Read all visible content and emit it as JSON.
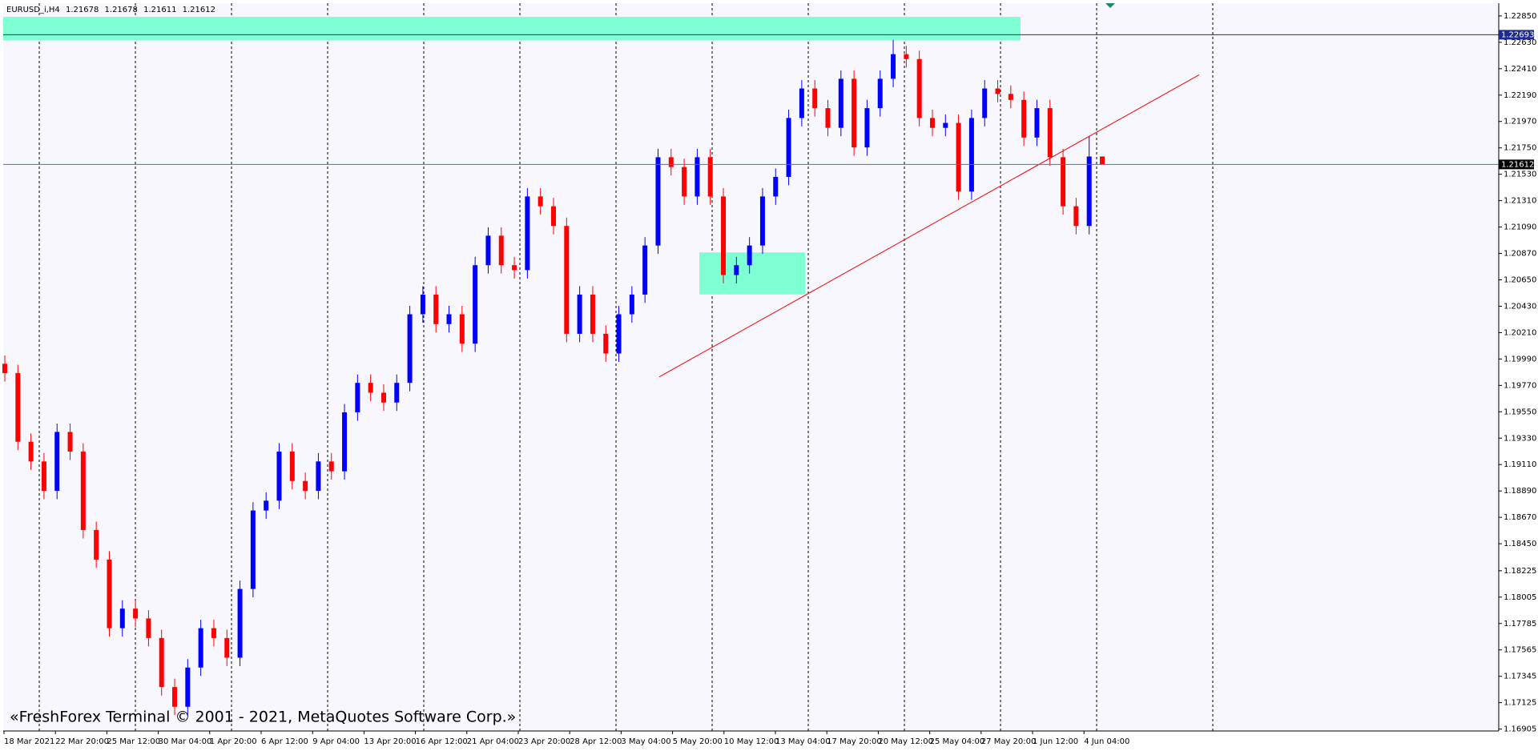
{
  "chart_data": {
    "type": "candlestick",
    "symbol": "EURUSD_i,H4",
    "copyright": "«FreshForex Terminal © 2001 - 2021, MetaQuotes Software Corp.»",
    "up_color": "#0000ff",
    "down_color": "#ff0000",
    "ylim": [
      1.16889,
      1.22956
    ],
    "yticks": [
      {
        "value": 1.2285,
        "label": "1.22850"
      },
      {
        "value": 1.2263,
        "label": "1.22630"
      },
      {
        "value": 1.2241,
        "label": "1.22410"
      },
      {
        "value": 1.2219,
        "label": "1.22190"
      },
      {
        "value": 1.2197,
        "label": "1.21970"
      },
      {
        "value": 1.2175,
        "label": "1.21750"
      },
      {
        "value": 1.2153,
        "label": "1.21530"
      },
      {
        "value": 1.2131,
        "label": "1.21310"
      },
      {
        "value": 1.2109,
        "label": "1.21090"
      },
      {
        "value": 1.2087,
        "label": "1.20870"
      },
      {
        "value": 1.2065,
        "label": "1.20650"
      },
      {
        "value": 1.2043,
        "label": "1.20430"
      },
      {
        "value": 1.2021,
        "label": "1.20210"
      },
      {
        "value": 1.1999,
        "label": "1.19990"
      },
      {
        "value": 1.1977,
        "label": "1.19770"
      },
      {
        "value": 1.1955,
        "label": "1.19550"
      },
      {
        "value": 1.1933,
        "label": "1.19330"
      },
      {
        "value": 1.1911,
        "label": "1.19110"
      },
      {
        "value": 1.1889,
        "label": "1.18890"
      },
      {
        "value": 1.1867,
        "label": "1.18670"
      },
      {
        "value": 1.1845,
        "label": "1.18450"
      },
      1.18225,
      1.18005,
      1.17785,
      1.17565,
      1.17345,
      1.17125,
      1.16905
    ],
    "time_labels": [
      "18 Mar 2021",
      "22 Mar 20:00",
      "25 Mar 12:00",
      "30 Mar 04:00",
      "1 Apr 20:00",
      "6 Apr 12:00",
      "9 Apr 04:00",
      "13 Apr 20:00",
      "16 Apr 12:00",
      "21 Apr 04:00",
      "23 Apr 20:00",
      "28 Apr 12:00",
      "3 May 04:00",
      "5 May 20:00",
      "10 May 12:00",
      "13 May 04:00",
      "17 May 20:00",
      "20 May 12:00",
      "25 May 04:00",
      "27 May 20:00",
      "1 Jun 12:00",
      "4 Jun 04:00"
    ],
    "price_line": 1.22693,
    "zones": [
      {
        "top": 1.22842,
        "bottom": 1.22646
      },
      {
        "top": 1.20879,
        "bottom": 1.20528
      }
    ],
    "trendline": [
      1.19841,
      1.22359
    ],
    "candles": [
      [
        1.1995,
        1.2002,
        1.19802,
        1.19872
      ],
      [
        1.19872,
        1.19942,
        1.1923,
        1.193
      ],
      [
        1.193,
        1.1937,
        1.19066,
        1.19136
      ],
      [
        1.19136,
        1.19206,
        1.18821,
        1.18891
      ],
      [
        1.18891,
        1.19452,
        1.18821,
        1.19382
      ],
      [
        1.19382,
        1.19452,
        1.19148,
        1.19218
      ],
      [
        1.19218,
        1.19288,
        1.18494,
        1.18564
      ],
      [
        1.18564,
        1.18634,
        1.18248,
        1.18318
      ],
      [
        1.18318,
        1.18388,
        1.17676,
        1.17746
      ],
      [
        1.17746,
        1.17979,
        1.17676,
        1.17909
      ],
      [
        1.17909,
        1.17979,
        1.17757,
        1.17827
      ],
      [
        1.17827,
        1.17897,
        1.17594,
        1.17664
      ],
      [
        1.17664,
        1.17734,
        1.17185,
        1.17255
      ],
      [
        1.17255,
        1.17325,
        1.17021,
        1.17091
      ],
      [
        1.17091,
        1.17488,
        1.17021,
        1.17418
      ],
      [
        1.17418,
        1.17816,
        1.17348,
        1.17746
      ],
      [
        1.17746,
        1.17816,
        1.17594,
        1.17664
      ],
      [
        1.17664,
        1.17734,
        1.1743,
        1.175
      ],
      [
        1.175,
        1.18143,
        1.1743,
        1.18073
      ],
      [
        1.18073,
        1.18797,
        1.18003,
        1.18727
      ],
      [
        1.18727,
        1.18879,
        1.18657,
        1.18809
      ],
      [
        1.18809,
        1.19288,
        1.18739,
        1.19218
      ],
      [
        1.19218,
        1.19288,
        1.18903,
        1.18973
      ],
      [
        1.18973,
        1.19043,
        1.18821,
        1.18891
      ],
      [
        1.18891,
        1.19206,
        1.18821,
        1.19136
      ],
      [
        1.19136,
        1.19206,
        1.18984,
        1.19054
      ],
      [
        1.19054,
        1.19615,
        1.18984,
        1.19545
      ],
      [
        1.19545,
        1.19861,
        1.19475,
        1.19791
      ],
      [
        1.19791,
        1.19861,
        1.19639,
        1.19709
      ],
      [
        1.19709,
        1.19779,
        1.19557,
        1.19627
      ],
      [
        1.19627,
        1.19861,
        1.19557,
        1.19791
      ],
      [
        1.19791,
        1.20433,
        1.19721,
        1.20363
      ],
      [
        1.20363,
        1.20597,
        1.20293,
        1.20527
      ],
      [
        1.20527,
        1.20597,
        1.20211,
        1.20281
      ],
      [
        1.20281,
        1.20433,
        1.20211,
        1.20363
      ],
      [
        1.20363,
        1.20433,
        1.20048,
        1.20118
      ],
      [
        1.20118,
        1.20842,
        1.20048,
        1.20772
      ],
      [
        1.20772,
        1.21088,
        1.20702,
        1.21018
      ],
      [
        1.21018,
        1.21088,
        1.20702,
        1.20772
      ],
      [
        1.20772,
        1.20842,
        1.20661,
        1.20731
      ],
      [
        1.20731,
        1.21415,
        1.20661,
        1.21345
      ],
      [
        1.21345,
        1.21415,
        1.21193,
        1.21263
      ],
      [
        1.21263,
        1.21333,
        1.21029,
        1.21099
      ],
      [
        1.21099,
        1.21169,
        1.2013,
        1.202
      ],
      [
        1.202,
        1.20597,
        1.2013,
        1.20527
      ],
      [
        1.20527,
        1.20597,
        1.2013,
        1.202
      ],
      [
        1.202,
        1.2027,
        1.19966,
        1.20036
      ],
      [
        1.20036,
        1.20433,
        1.19966,
        1.20363
      ],
      [
        1.20363,
        1.20597,
        1.20293,
        1.20527
      ],
      [
        1.20527,
        1.21006,
        1.20457,
        1.20936
      ],
      [
        1.20936,
        1.21742,
        1.20866,
        1.21672
      ],
      [
        1.21672,
        1.21742,
        1.2152,
        1.2159
      ],
      [
        1.2159,
        1.2166,
        1.21275,
        1.21345
      ],
      [
        1.21345,
        1.21742,
        1.21275,
        1.21672
      ],
      [
        1.21672,
        1.21742,
        1.21275,
        1.21345
      ],
      [
        1.21345,
        1.21415,
        1.2062,
        1.2069
      ],
      [
        1.2069,
        1.20842,
        1.2062,
        1.20772
      ],
      [
        1.20772,
        1.21006,
        1.20702,
        1.20936
      ],
      [
        1.20936,
        1.21415,
        1.20866,
        1.21345
      ],
      [
        1.21345,
        1.21578,
        1.21275,
        1.21508
      ],
      [
        1.21508,
        1.22069,
        1.21438,
        1.21999
      ],
      [
        1.21999,
        1.22315,
        1.21929,
        1.22245
      ],
      [
        1.22245,
        1.22315,
        1.22011,
        1.22081
      ],
      [
        1.22081,
        1.22151,
        1.21847,
        1.21917
      ],
      [
        1.21917,
        1.22396,
        1.21847,
        1.22326
      ],
      [
        1.22326,
        1.22396,
        1.21684,
        1.21754
      ],
      [
        1.21754,
        1.22151,
        1.21684,
        1.22081
      ],
      [
        1.22081,
        1.22396,
        1.22011,
        1.22326
      ],
      [
        1.22326,
        1.2265,
        1.22256,
        1.22531
      ],
      [
        1.22531,
        1.22601,
        1.2242,
        1.2249
      ],
      [
        1.2249,
        1.2256,
        1.21929,
        1.21999
      ],
      [
        1.21999,
        1.22069,
        1.21847,
        1.21917
      ],
      [
        1.21917,
        1.22028,
        1.21847,
        1.21958
      ],
      [
        1.21958,
        1.22028,
        1.21316,
        1.21386
      ],
      [
        1.21386,
        1.22069,
        1.21316,
        1.21999
      ],
      [
        1.21999,
        1.22315,
        1.21929,
        1.22245
      ],
      [
        1.22245,
        1.22315,
        1.2213,
        1.222
      ],
      [
        1.222,
        1.2227,
        1.2208,
        1.2215
      ],
      [
        1.2215,
        1.2222,
        1.21766,
        1.21836
      ],
      [
        1.21836,
        1.22151,
        1.21766,
        1.22081
      ],
      [
        1.22081,
        1.22151,
        1.21602,
        1.21672
      ],
      [
        1.21672,
        1.21742,
        1.21193,
        1.21263
      ],
      [
        1.21263,
        1.21333,
        1.21029,
        1.21099
      ],
      [
        1.21099,
        1.21848,
        1.21029,
        1.21678
      ],
      [
        1.21678,
        1.21678,
        1.21611,
        1.21612
      ]
    ]
  }
}
